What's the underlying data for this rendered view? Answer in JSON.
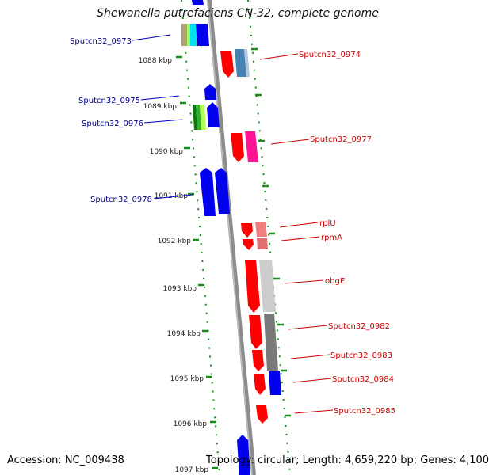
{
  "title": "Shewanella putrefaciens CN-32, complete genome",
  "footer": {
    "accession": "Accession: NC_009438",
    "topology": "Topology: circular; Length: 4,659,220 bp; Genes: 4,100"
  },
  "kbp_labels": [
    "1088 kbp",
    "1089 kbp",
    "1090 kbp",
    "1091 kbp",
    "1092 kbp",
    "1093 kbp",
    "1094 kbp",
    "1095 kbp",
    "1096 kbp",
    "1097 kbp"
  ],
  "left_gene_labels": [
    "Sputcn32_0973",
    "Sputcn32_0975",
    "Sputcn32_0976",
    "Sputcn32_0978"
  ],
  "right_gene_labels": [
    "Sputcn32_0974",
    "Sputcn32_0977",
    "rplU",
    "rpmA",
    "obgE",
    "Sputcn32_0982",
    "Sputcn32_0983",
    "Sputcn32_0984",
    "Sputcn32_0985"
  ],
  "colors": {
    "forward_label": "#00008b",
    "reverse_label": "#cc0000",
    "backbone": "#8c8c8c",
    "ticks": "#1a8a1a"
  }
}
